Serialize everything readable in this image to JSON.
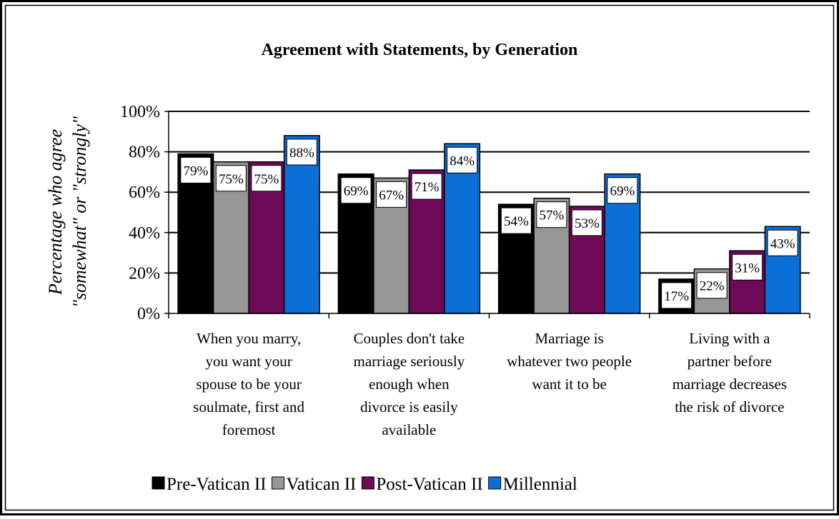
{
  "chart_data": {
    "type": "bar",
    "title": "Agreement with Statements, by Generation",
    "ylabel_lines": [
      "Percentage who agree",
      "\"somewhat\" or \"strongly\""
    ],
    "xlabel": "",
    "ylim": [
      0,
      100
    ],
    "yticks": [
      0,
      20,
      40,
      60,
      80,
      100
    ],
    "ytick_labels": [
      "0%",
      "20%",
      "40%",
      "60%",
      "80%",
      "100%"
    ],
    "grid": true,
    "legend_position": "bottom",
    "categories": [
      [
        "When you marry,",
        "you want your",
        "spouse to be your",
        "soulmate, first and",
        "foremost"
      ],
      [
        "Couples don't take",
        "marriage seriously",
        "enough when",
        "divorce is easily",
        "available"
      ],
      [
        "Marriage is",
        "whatever two people",
        "want it to be"
      ],
      [
        "Living with a",
        "partner before",
        "marriage decreases",
        "the risk of divorce"
      ]
    ],
    "series": [
      {
        "name": "Pre-Vatican II",
        "color": "#000000",
        "values": [
          79,
          69,
          54,
          17
        ],
        "labels": [
          "79%",
          "69%",
          "54%",
          "17%"
        ]
      },
      {
        "name": "Vatican II",
        "color": "#969696",
        "values": [
          75,
          67,
          57,
          22
        ],
        "labels": [
          "75%",
          "67%",
          "57%",
          "22%"
        ]
      },
      {
        "name": "Post-Vatican II",
        "color": "#6e0a57",
        "values": [
          75,
          71,
          53,
          31
        ],
        "labels": [
          "75%",
          "71%",
          "53%",
          "31%"
        ]
      },
      {
        "name": "Millennial",
        "color": "#0a6fd6",
        "values": [
          88,
          84,
          69,
          43
        ],
        "labels": [
          "88%",
          "84%",
          "69%",
          "43%"
        ]
      }
    ]
  }
}
